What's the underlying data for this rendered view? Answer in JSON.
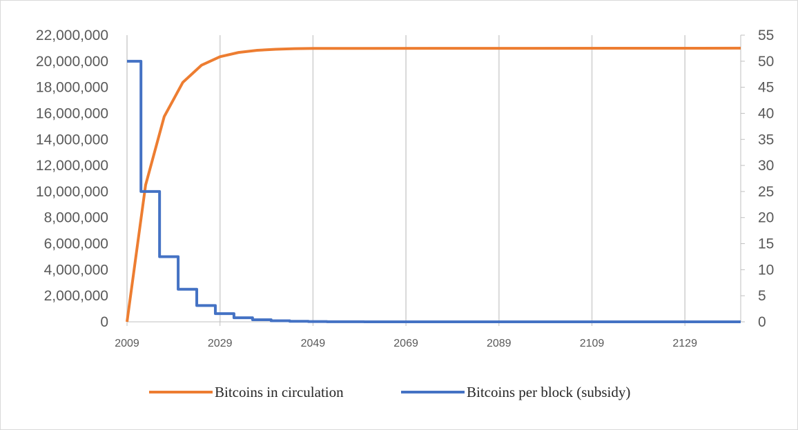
{
  "chart_data": {
    "type": "line",
    "title": "",
    "xlabel": "",
    "ylabel": "",
    "x_ticks": [
      "2009",
      "2029",
      "2049",
      "2069",
      "2089",
      "2109",
      "2129"
    ],
    "xlim": [
      2009,
      2141
    ],
    "y_left_ticks": [
      "0",
      "2,000,000",
      "4,000,000",
      "6,000,000",
      "8,000,000",
      "10,000,000",
      "12,000,000",
      "14,000,000",
      "16,000,000",
      "18,000,000",
      "20,000,000",
      "22,000,000"
    ],
    "y_left_lim": [
      0,
      22000000
    ],
    "y_right_ticks": [
      "0",
      "5",
      "10",
      "15",
      "20",
      "25",
      "30",
      "35",
      "40",
      "45",
      "50",
      "55"
    ],
    "y_right_lim": [
      0,
      55
    ],
    "grid": "vertical",
    "legend_position": "bottom",
    "series": [
      {
        "name": "Bitcoins in circulation",
        "axis": "left",
        "color": "#ed7d31",
        "step": false,
        "x": [
          2009,
          2013,
          2017,
          2021,
          2025,
          2029,
          2033,
          2037,
          2041,
          2045,
          2049,
          2141
        ],
        "values": [
          0,
          10500000,
          15750000,
          18375000,
          19687500,
          20343750,
          20671875,
          20835937,
          20917968,
          20958984,
          20979492,
          21000000
        ]
      },
      {
        "name": "Bitcoins per block (subsidy)",
        "axis": "right",
        "color": "#4472c4",
        "step": true,
        "x": [
          2009,
          2012,
          2016,
          2020,
          2024,
          2028,
          2032,
          2036,
          2040,
          2044,
          2048,
          2052,
          2056,
          2060,
          2064,
          2068,
          2072,
          2141
        ],
        "values": [
          50,
          25,
          12.5,
          6.25,
          3.125,
          1.5625,
          0.78125,
          0.390625,
          0.1953125,
          0.09765625,
          0.048828125,
          0.0244140625,
          0.01220703125,
          0.006103515625,
          0.0030517578125,
          0.00152587890625,
          0,
          0
        ]
      }
    ]
  }
}
